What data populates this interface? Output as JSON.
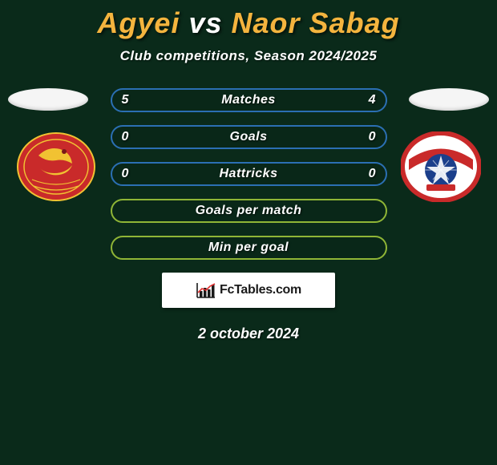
{
  "header": {
    "title_player1": "Agyei",
    "title_vs": "vs",
    "title_player2": "Naor Sabag",
    "title_color_player": "#f4b43e",
    "title_color_vs": "#ffffff",
    "subtitle": "Club competitions, Season 2024/2025"
  },
  "colors": {
    "background": "#0a2a1a",
    "bar_border_blue": "#2b6fb3",
    "bar_border_green": "#8fb536",
    "text_white": "#ffffff"
  },
  "bars": [
    {
      "label": "Matches",
      "left": "5",
      "right": "4",
      "border": "#2b6fb3"
    },
    {
      "label": "Goals",
      "left": "0",
      "right": "0",
      "border": "#2b6fb3"
    },
    {
      "label": "Hattricks",
      "left": "0",
      "right": "0",
      "border": "#2b6fb3"
    },
    {
      "label": "Goals per match",
      "left": "",
      "right": "",
      "border": "#8fb536"
    },
    {
      "label": "Min per goal",
      "left": "",
      "right": "",
      "border": "#8fb536"
    }
  ],
  "footer": {
    "brand_text": "FcTables.com",
    "date": "2 october 2024"
  },
  "badges": {
    "left": {
      "bg": "#c92a2a",
      "accent": "#f1c232"
    },
    "right": {
      "bg": "#ffffff",
      "ring": "#c92a2a",
      "ball": "#1b3f8b"
    }
  }
}
